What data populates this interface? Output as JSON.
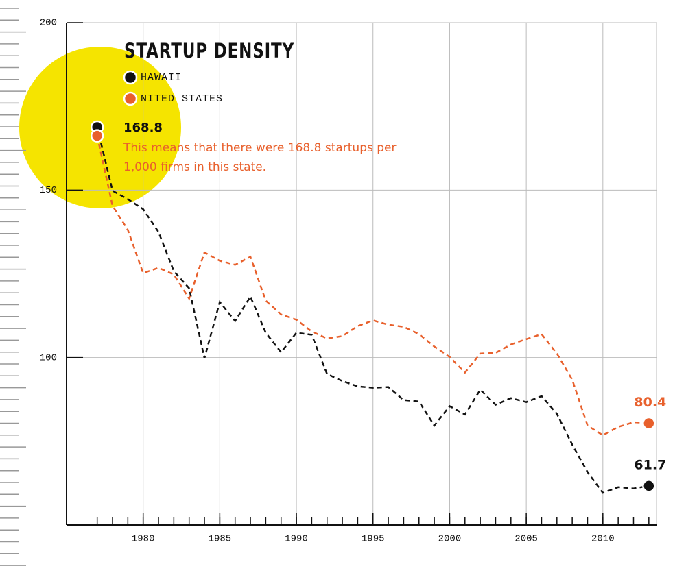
{
  "chart_data": {
    "type": "line",
    "title": "STARTUP DENSITY",
    "x": [
      1977,
      1978,
      1979,
      1980,
      1981,
      1982,
      1983,
      1984,
      1985,
      1986,
      1987,
      1988,
      1989,
      1990,
      1991,
      1992,
      1993,
      1994,
      1995,
      1996,
      1997,
      1998,
      1999,
      2000,
      2001,
      2002,
      2003,
      2004,
      2005,
      2006,
      2007,
      2008,
      2009,
      2010,
      2011,
      2012,
      2013
    ],
    "series": [
      {
        "name": "HAWAII",
        "color": "#111111",
        "values": [
          168.8,
          149.8,
          147.3,
          144.3,
          137.5,
          125.8,
          120.7,
          99.8,
          116.6,
          110.9,
          118.2,
          107.4,
          101.6,
          107.4,
          106.8,
          95.1,
          93.0,
          91.4,
          91.0,
          91.2,
          87.3,
          86.9,
          79.7,
          85.5,
          83.0,
          90.4,
          85.9,
          87.9,
          86.7,
          88.5,
          83.2,
          74.0,
          65.8,
          59.6,
          61.3,
          60.9,
          61.7
        ]
      },
      {
        "name": "NITED STATES",
        "color": "#e8602c",
        "values": [
          166.2,
          145.3,
          138.1,
          125.2,
          126.8,
          124.8,
          117.6,
          131.4,
          128.9,
          127.7,
          130.1,
          117.0,
          112.9,
          111.3,
          107.8,
          105.7,
          106.4,
          109.4,
          111.1,
          109.8,
          109.2,
          107.0,
          103.3,
          100.2,
          95.5,
          101.2,
          101.4,
          103.9,
          105.5,
          107.0,
          101.2,
          93.4,
          79.7,
          76.8,
          79.3,
          80.7,
          80.4
        ]
      }
    ],
    "annotation": [
      "This means that there were 168.8 startups per",
      "1,000 firms in this state."
    ],
    "xlim": [
      1975,
      2013.5
    ],
    "xticks": [
      1980,
      1985,
      1990,
      1995,
      2000,
      2005,
      2010
    ],
    "ylim": [
      50,
      200
    ],
    "yticks": [
      100,
      150,
      200
    ],
    "grid": true
  }
}
